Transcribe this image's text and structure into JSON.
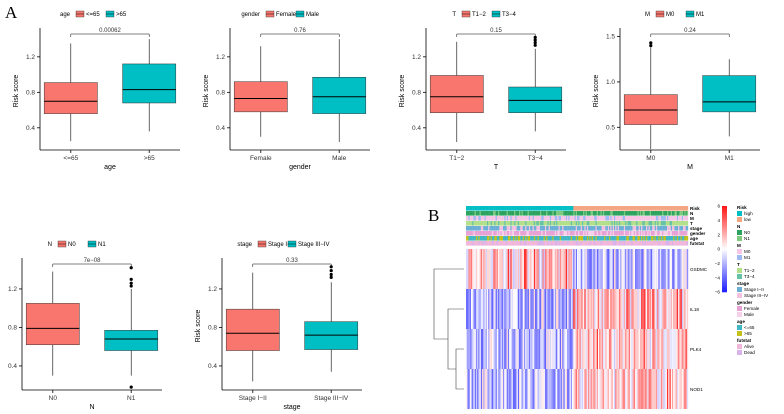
{
  "panel_labels": {
    "a": "A",
    "b": "B"
  },
  "colors": {
    "group1": "#F8766D",
    "group2": "#00BFC4"
  },
  "chart_data": [
    {
      "type": "box",
      "xlabel": "age",
      "ylabel": "Risk score",
      "legend_title": "age",
      "legend_position": "top",
      "categories": [
        "<=65",
        ">65"
      ],
      "ylim": [
        0.15,
        1.48
      ],
      "yticks": [
        "0.4",
        "0.8",
        "1.2"
      ],
      "pvalue": "0.00062",
      "boxes": [
        {
          "min": 0.25,
          "q1": 0.56,
          "median": 0.7,
          "q3": 0.91,
          "max": 1.35,
          "outliers": []
        },
        {
          "min": 0.36,
          "q1": 0.68,
          "median": 0.83,
          "q3": 1.12,
          "max": 1.4,
          "outliers": []
        }
      ]
    },
    {
      "type": "box",
      "xlabel": "gender",
      "ylabel": "Risk score",
      "legend_title": "gender",
      "legend_position": "top",
      "categories": [
        "Female",
        "Male"
      ],
      "ylim": [
        0.15,
        1.48
      ],
      "yticks": [
        "0.4",
        "0.8",
        "1.2"
      ],
      "pvalue": "0.76",
      "boxes": [
        {
          "min": 0.3,
          "q1": 0.58,
          "median": 0.73,
          "q3": 0.92,
          "max": 1.32,
          "outliers": []
        },
        {
          "min": 0.24,
          "q1": 0.56,
          "median": 0.75,
          "q3": 0.97,
          "max": 1.4,
          "outliers": []
        }
      ]
    },
    {
      "type": "box",
      "xlabel": "T",
      "ylabel": "Risk score",
      "legend_title": "T",
      "legend_position": "top",
      "categories": [
        "T1−2",
        "T3−4"
      ],
      "ylim": [
        0.15,
        1.48
      ],
      "yticks": [
        "0.4",
        "0.8",
        "1.2"
      ],
      "pvalue": "0.15",
      "boxes": [
        {
          "min": 0.24,
          "q1": 0.57,
          "median": 0.75,
          "q3": 0.99,
          "max": 1.37,
          "outliers": []
        },
        {
          "min": 0.36,
          "q1": 0.57,
          "median": 0.71,
          "q3": 0.86,
          "max": 1.29,
          "outliers": [
            1.33,
            1.36,
            1.39,
            1.42
          ]
        }
      ]
    },
    {
      "type": "box",
      "xlabel": "M",
      "ylabel": "Risk score",
      "legend_title": "M",
      "legend_position": "top",
      "categories": [
        "M0",
        "M1"
      ],
      "ylim": [
        0.25,
        1.55
      ],
      "yticks": [
        "0.5",
        "1.0",
        "1.5"
      ],
      "pvalue": "0.24",
      "boxes": [
        {
          "min": 0.26,
          "q1": 0.53,
          "median": 0.69,
          "q3": 0.86,
          "max": 1.38,
          "outliers": [
            1.4,
            1.43
          ]
        },
        {
          "min": 0.4,
          "q1": 0.67,
          "median": 0.78,
          "q3": 1.07,
          "max": 1.25,
          "outliers": []
        }
      ]
    },
    {
      "type": "box",
      "xlabel": "N",
      "ylabel": "Risk score",
      "legend_title": "N",
      "legend_position": "top",
      "categories": [
        "N0",
        "N1"
      ],
      "ylim": [
        0.15,
        1.48
      ],
      "yticks": [
        "0.4",
        "0.8",
        "1.2"
      ],
      "pvalue": "7e−08",
      "boxes": [
        {
          "min": 0.3,
          "q1": 0.62,
          "median": 0.79,
          "q3": 1.05,
          "max": 1.38,
          "outliers": []
        },
        {
          "min": 0.3,
          "q1": 0.56,
          "median": 0.68,
          "q3": 0.77,
          "max": 1.2,
          "outliers": [
            0.18,
            1.23,
            1.26,
            1.3,
            1.42
          ]
        }
      ]
    },
    {
      "type": "box",
      "xlabel": "stage",
      "ylabel": "Risk score",
      "legend_title": "stage",
      "legend_position": "top",
      "categories": [
        "Stage I−II",
        "Stage III−IV"
      ],
      "ylim": [
        0.15,
        1.48
      ],
      "yticks": [
        "0.4",
        "0.8",
        "1.2"
      ],
      "pvalue": "0.33",
      "boxes": [
        {
          "min": 0.24,
          "q1": 0.56,
          "median": 0.74,
          "q3": 0.99,
          "max": 1.37,
          "outliers": []
        },
        {
          "min": 0.34,
          "q1": 0.57,
          "median": 0.72,
          "q3": 0.86,
          "max": 1.27,
          "outliers": [
            1.32,
            1.35,
            1.39,
            1.43
          ]
        }
      ]
    },
    {
      "type": "heatmap",
      "annotation_rows": [
        "Risk",
        "N",
        "M",
        "T",
        "stage",
        "gender",
        "age",
        "futstat"
      ],
      "genes": [
        "GSDMC",
        "IL18",
        "PLK4",
        "NOD1"
      ],
      "colorbar": {
        "ticks": [
          "6",
          "4",
          "2",
          "0",
          "−2",
          "−4",
          "−6"
        ],
        "min": -6,
        "max": 6
      },
      "legend": [
        {
          "title": "Risk",
          "items": [
            {
              "label": "high",
              "color": "#00BFC4"
            },
            {
              "label": "low",
              "color": "#F4A582"
            }
          ]
        },
        {
          "title": "N",
          "items": [
            {
              "label": "N0",
              "color": "#2CA25F"
            },
            {
              "label": "N1",
              "color": "#7FC97F"
            }
          ]
        },
        {
          "title": "M",
          "items": [
            {
              "label": "M0",
              "color": "#F7C6E6"
            },
            {
              "label": "M1",
              "color": "#9EB9F3"
            }
          ]
        },
        {
          "title": "T",
          "items": [
            {
              "label": "T1−2",
              "color": "#B2DF8A"
            },
            {
              "label": "T3−4",
              "color": "#66C2A5"
            }
          ]
        },
        {
          "title": "stage",
          "items": [
            {
              "label": "Stage I−II",
              "color": "#6BAED6"
            },
            {
              "label": "Stage III−IV",
              "color": "#F6C0DF"
            }
          ]
        },
        {
          "title": "gender",
          "items": [
            {
              "label": "Female",
              "color": "#E7A1D4"
            },
            {
              "label": "Male",
              "color": "#F6D0E8"
            }
          ]
        },
        {
          "title": "age",
          "items": [
            {
              "label": "<=65",
              "color": "#41B6C4"
            },
            {
              "label": ">65",
              "color": "#C2C21A"
            }
          ]
        },
        {
          "title": "futstat",
          "items": [
            {
              "label": "Alive",
              "color": "#F1B6DA"
            },
            {
              "label": "Dead",
              "color": "#D8B2E8"
            }
          ]
        }
      ]
    }
  ]
}
